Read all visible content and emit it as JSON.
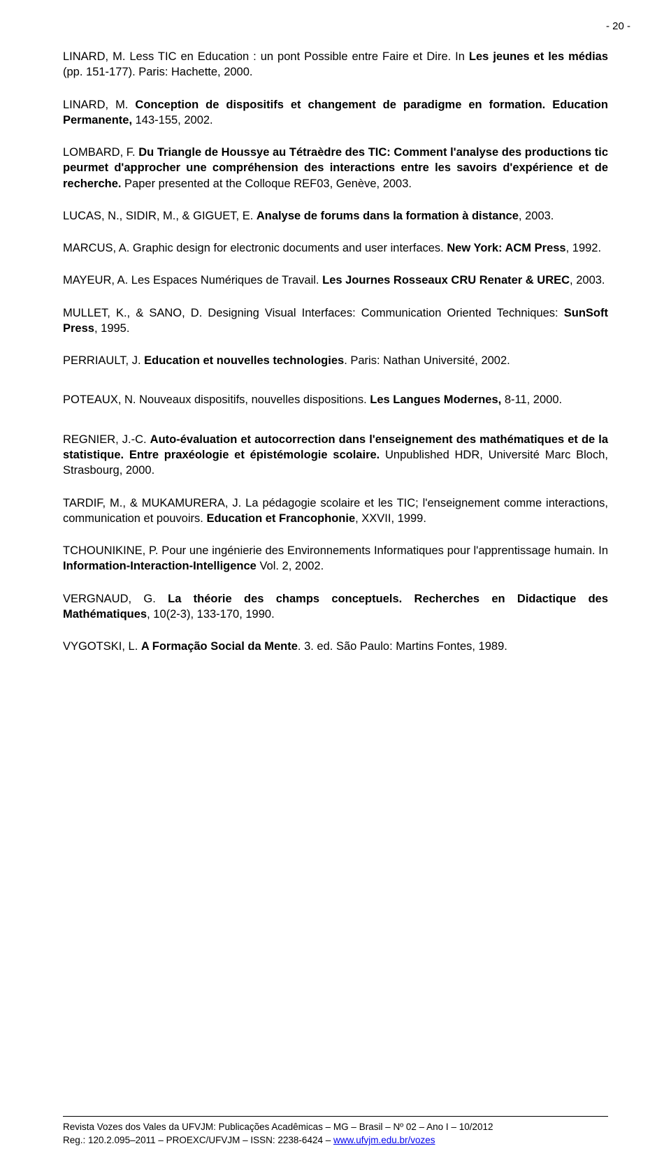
{
  "page_number": "- 20 -",
  "refs": [
    {
      "parts": [
        {
          "text": "LINARD, M. Less TIC en Education : un pont Possible entre Faire et Dire. In ",
          "bold": false
        },
        {
          "text": "Les jeunes et les médias",
          "bold": true
        },
        {
          "text": " (pp. 151-177). Paris: Hachette, 2000.",
          "bold": false
        }
      ]
    },
    {
      "parts": [
        {
          "text": "LINARD, M. ",
          "bold": false
        },
        {
          "text": "Conception de dispositifs et changement de paradigme en formation. Education Permanente,",
          "bold": true
        },
        {
          "text": " 143-155, 2002.",
          "bold": false
        }
      ]
    },
    {
      "parts": [
        {
          "text": "LOMBARD, F. ",
          "bold": false
        },
        {
          "text": "Du Triangle de Houssye au Tétraèdre des TIC: Comment l'analyse des productions tic peurmet d'approcher une compréhension des interactions entre les savoirs d'expérience et de recherche.",
          "bold": true
        },
        {
          "text": " Paper presented at the Colloque REF03, Genève, 2003.",
          "bold": false
        }
      ]
    },
    {
      "parts": [
        {
          "text": "LUCAS, N., SIDIR, M., & GIGUET, E. ",
          "bold": false
        },
        {
          "text": "Analyse de forums dans la formation à distance",
          "bold": true
        },
        {
          "text": ", 2003.",
          "bold": false
        }
      ]
    },
    {
      "parts": [
        {
          "text": "MARCUS, A. Graphic design for electronic documents and user interfaces. ",
          "bold": false
        },
        {
          "text": "New York: ACM Press",
          "bold": true
        },
        {
          "text": ", 1992.",
          "bold": false
        }
      ]
    },
    {
      "parts": [
        {
          "text": "MAYEUR, A. Les Espaces Numériques de Travail. ",
          "bold": false
        },
        {
          "text": "Les Journes Rosseaux CRU Renater & UREC",
          "bold": true
        },
        {
          "text": ", 2003.",
          "bold": false
        }
      ]
    },
    {
      "parts": [
        {
          "text": "MULLET, K., & SANO, D. Designing Visual Interfaces: Communication Oriented Techniques: ",
          "bold": false
        },
        {
          "text": "SunSoft Press",
          "bold": true
        },
        {
          "text": ", 1995.",
          "bold": false
        }
      ]
    },
    {
      "parts": [
        {
          "text": "PERRIAULT, J. ",
          "bold": false
        },
        {
          "text": "Education et nouvelles technologies",
          "bold": true
        },
        {
          "text": ". Paris: Nathan Université, 2002.",
          "bold": false
        }
      ]
    },
    {
      "spaced": true,
      "parts": [
        {
          "text": "POTEAUX, N. Nouveaux dispositifs, nouvelles dispositions. ",
          "bold": false
        },
        {
          "text": "Les Langues Modernes,",
          "bold": true
        },
        {
          "text": " 8-11, 2000.",
          "bold": false
        }
      ]
    },
    {
      "parts": [
        {
          "text": "REGNIER, J.-C. ",
          "bold": false
        },
        {
          "text": "Auto-évaluation et autocorrection dans l'enseignement des mathématiques et de la statistique. Entre praxéologie et épistémologie scolaire.",
          "bold": true
        },
        {
          "text": " Unpublished HDR, Université Marc Bloch, Strasbourg, 2000.",
          "bold": false
        }
      ]
    },
    {
      "parts": [
        {
          "text": "TARDIF, M., & MUKAMURERA, J. La pédagogie scolaire et les TIC; l'enseignement comme interactions, communication et pouvoirs. ",
          "bold": false
        },
        {
          "text": "Education et Francophonie",
          "bold": true
        },
        {
          "text": ", XXVII, 1999.",
          "bold": false
        }
      ]
    },
    {
      "parts": [
        {
          "text": "TCHOUNIKINE, P. Pour une ingénierie des Environnements Informatiques pour l'apprentissage humain. In ",
          "bold": false
        },
        {
          "text": "Information-Interaction-Intelligence",
          "bold": true
        },
        {
          "text": " Vol. 2, 2002.",
          "bold": false
        }
      ]
    },
    {
      "spaced": true,
      "parts": [
        {
          "text": "VERGNAUD, G. ",
          "bold": false
        },
        {
          "text": "La théorie des champs conceptuels. Recherches en Didactique des Mathématiques",
          "bold": true
        },
        {
          "text": ", 10(2-3), 133-170, 1990.",
          "bold": false
        }
      ]
    },
    {
      "parts": [
        {
          "text": "VYGOTSKI, L. ",
          "bold": false
        },
        {
          "text": "A Formação Social da Mente",
          "bold": true
        },
        {
          "text": ". 3. ed. São Paulo: Martins Fontes, 1989.",
          "bold": false
        }
      ]
    }
  ],
  "footer": {
    "line1": "Revista Vozes dos Vales da UFVJM: Publicações Acadêmicas – MG – Brasil – Nº 02 – Ano I – 10/2012",
    "line2_prefix": "Reg.: 120.2.095–2011 – PROEXC/UFVJM – ISSN: 2238-6424 – ",
    "line2_link": "www.ufvjm.edu.br/vozes"
  }
}
